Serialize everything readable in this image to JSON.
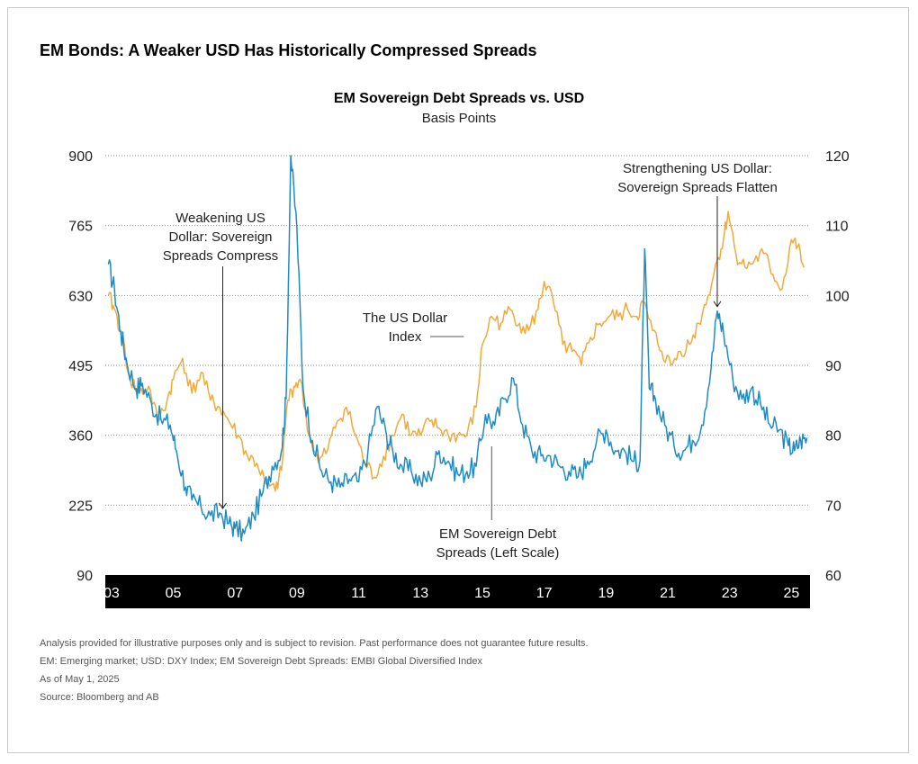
{
  "headline": "EM Bonds: A Weaker USD Has Historically Compressed Spreads",
  "chart_data": {
    "type": "line",
    "title": "EM Sovereign Debt Spreads vs. USD",
    "subtitle": "Basis Points",
    "x_tick_labels": [
      "03",
      "05",
      "07",
      "09",
      "11",
      "13",
      "15",
      "17",
      "19",
      "21",
      "23",
      "25"
    ],
    "xlim": [
      2002.8,
      2025.6
    ],
    "left_axis": {
      "ticks": [
        90,
        225,
        360,
        495,
        630,
        765,
        900
      ],
      "ylim": [
        90,
        900
      ]
    },
    "right_axis": {
      "ticks": [
        60,
        70,
        80,
        90,
        100,
        110,
        120
      ],
      "ylim": [
        60,
        120
      ]
    },
    "grid": "horizontal dotted",
    "annotations": [
      {
        "text": [
          "Weakening US",
          "Dollar: Sovereign",
          "Spreads Compress"
        ],
        "x": 2006.6,
        "y": 215
      },
      {
        "text": [
          "Strengthening US Dollar:",
          "Sovereign Spreads Flatten"
        ],
        "x": 2022.6,
        "y": 605
      },
      {
        "text": [
          "The US Dollar",
          "Index"
        ],
        "x": 2014.4,
        "y_right": 94.5
      },
      {
        "text": [
          "EM Sovereign Debt",
          "Spreads (Left Scale)"
        ],
        "x": 2015.3,
        "y": 360
      }
    ],
    "series": [
      {
        "name": "EM Sovereign Debt Spreads (Left Scale)",
        "axis": "left",
        "color": "#1e8cc4",
        "x": [
          2002.9,
          2003.1,
          2003.3,
          2003.5,
          2003.8,
          2004.0,
          2004.3,
          2004.6,
          2004.9,
          2005.1,
          2005.4,
          2005.6,
          2005.9,
          2006.2,
          2006.5,
          2006.8,
          2007.0,
          2007.3,
          2007.6,
          2007.9,
          2008.2,
          2008.5,
          2008.65,
          2008.8,
          2009.0,
          2009.2,
          2009.5,
          2009.8,
          2010.1,
          2010.4,
          2010.7,
          2011.0,
          2011.3,
          2011.6,
          2011.9,
          2012.1,
          2012.4,
          2012.7,
          2013.0,
          2013.3,
          2013.6,
          2013.9,
          2014.2,
          2014.5,
          2014.8,
          2015.1,
          2015.4,
          2015.7,
          2016.0,
          2016.3,
          2016.6,
          2016.9,
          2017.2,
          2017.5,
          2017.8,
          2018.1,
          2018.4,
          2018.7,
          2019.0,
          2019.3,
          2019.6,
          2019.9,
          2020.1,
          2020.25,
          2020.4,
          2020.6,
          2020.9,
          2021.2,
          2021.5,
          2021.8,
          2022.1,
          2022.4,
          2022.6,
          2022.8,
          2023.1,
          2023.4,
          2023.7,
          2024.0,
          2024.3,
          2024.6,
          2024.9,
          2025.1,
          2025.3,
          2025.5
        ],
        "values": [
          690,
          640,
          560,
          500,
          450,
          460,
          420,
          390,
          380,
          330,
          260,
          235,
          220,
          205,
          210,
          190,
          180,
          170,
          205,
          250,
          300,
          330,
          430,
          900,
          760,
          450,
          350,
          290,
          270,
          260,
          275,
          270,
          330,
          415,
          360,
          330,
          300,
          290,
          270,
          280,
          330,
          310,
          285,
          290,
          300,
          400,
          380,
          430,
          470,
          380,
          330,
          320,
          320,
          300,
          290,
          280,
          310,
          350,
          370,
          330,
          330,
          310,
          310,
          720,
          450,
          430,
          380,
          340,
          330,
          350,
          380,
          490,
          600,
          560,
          470,
          430,
          450,
          420,
          380,
          370,
          340,
          330,
          350,
          355
        ]
      },
      {
        "name": "The US Dollar Index",
        "axis": "right",
        "color": "#f2a93b",
        "x": [
          2002.9,
          2003.1,
          2003.3,
          2003.6,
          2003.9,
          2004.2,
          2004.5,
          2004.8,
          2005.0,
          2005.3,
          2005.6,
          2005.9,
          2006.2,
          2006.5,
          2006.8,
          2007.1,
          2007.4,
          2007.7,
          2008.0,
          2008.3,
          2008.5,
          2008.7,
          2008.9,
          2009.1,
          2009.4,
          2009.7,
          2010.0,
          2010.3,
          2010.6,
          2010.9,
          2011.2,
          2011.5,
          2011.8,
          2012.1,
          2012.4,
          2012.7,
          2013.0,
          2013.3,
          2013.6,
          2013.9,
          2014.2,
          2014.5,
          2014.8,
          2015.0,
          2015.3,
          2015.6,
          2015.9,
          2016.2,
          2016.5,
          2016.8,
          2017.0,
          2017.3,
          2017.6,
          2017.9,
          2018.2,
          2018.5,
          2018.8,
          2019.1,
          2019.4,
          2019.7,
          2020.0,
          2020.2,
          2020.5,
          2020.8,
          2021.1,
          2021.4,
          2021.7,
          2022.0,
          2022.3,
          2022.6,
          2022.8,
          2022.95,
          2023.2,
          2023.5,
          2023.8,
          2024.1,
          2024.4,
          2024.7,
          2025.0,
          2025.2,
          2025.4
        ],
        "values": [
          100,
          98,
          95,
          88,
          86,
          87,
          82,
          85,
          88,
          91,
          86,
          89,
          85,
          84,
          82,
          80,
          77,
          76,
          73,
          72,
          75,
          85,
          87,
          88,
          80,
          76,
          78,
          82,
          84,
          80,
          76,
          74,
          77,
          80,
          83,
          80,
          80,
          82,
          81,
          80,
          80,
          80,
          84,
          93,
          97,
          96,
          98,
          96,
          95,
          98,
          102,
          99,
          93,
          92,
          90,
          94,
          96,
          97,
          97,
          98,
          97,
          99,
          95,
          92,
          90,
          92,
          93,
          96,
          100,
          105,
          108,
          112,
          106,
          104,
          105,
          106,
          103,
          101,
          108,
          107,
          104
        ]
      }
    ]
  },
  "footnotes": [
    "Analysis provided for illustrative purposes only and is subject to revision. Past performance does not guarantee future results.",
    "EM: Emerging market; USD: DXY Index; EM Sovereign Debt Spreads: EMBI Global Diversified Index",
    "As of May 1, 2025",
    "Source: Bloomberg and AB"
  ]
}
